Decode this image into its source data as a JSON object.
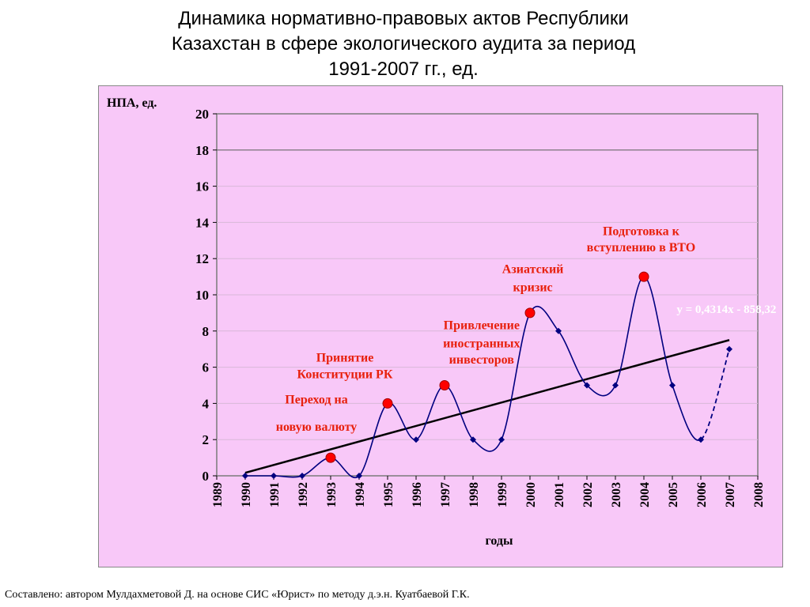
{
  "page": {
    "title_lines": [
      "Динамика нормативно-правовых актов Республики",
      "Казахстан в сфере экологического аудита за период",
      "1991-2007 гг., ед."
    ],
    "footer": "Составлено: автором Мулдахметовой Д. на основе СИС «Юрист» по методу д.э.н. Куатбаевой Г.К."
  },
  "chart_data": {
    "type": "line",
    "ylabel": "НПА, ед.",
    "xlabel": "годы",
    "xlim": [
      1989,
      2008
    ],
    "ylim": [
      0,
      20
    ],
    "x_ticks": [
      "1989",
      "1990",
      "1991",
      "1992",
      "1993",
      "1994",
      "1995",
      "1996",
      "1997",
      "1998",
      "1999",
      "2000",
      "2001",
      "2002",
      "2003",
      "2004",
      "2005",
      "2006",
      "2007",
      "2008"
    ],
    "y_ticks": [
      "0",
      "2",
      "4",
      "6",
      "8",
      "10",
      "12",
      "14",
      "16",
      "18",
      "20"
    ],
    "grid": "horizontal",
    "series": [
      {
        "color": "#000080",
        "x": [
          1990,
          1991,
          1992,
          1993,
          1994,
          1995,
          1996,
          1997,
          1998,
          1999,
          2000,
          2001,
          2002,
          2003,
          2004,
          2005,
          2006,
          2007
        ],
        "y": [
          0,
          0,
          0,
          1,
          0,
          4,
          2,
          5,
          2,
          2,
          9,
          8,
          5,
          5,
          11,
          5,
          2,
          7
        ],
        "dashed_last_segment": true
      }
    ],
    "trendline": {
      "color": "#000000",
      "equation": "y = 0,4314x - 858,32",
      "x_range": [
        1990,
        2007
      ],
      "slope": 0.4314,
      "intercept": -858.32
    },
    "events": [
      {
        "year": 1993,
        "value": 1,
        "label_lines": [
          "Переход на",
          "новую валюту"
        ]
      },
      {
        "year": 1995,
        "value": 4,
        "label_lines": [
          "Принятие",
          "Конституции РК"
        ]
      },
      {
        "year": 1997,
        "value": 5,
        "label_lines": [
          "Привлечение",
          "иностранных",
          "инвесторов"
        ]
      },
      {
        "year": 2000,
        "value": 9,
        "label_lines": [
          "Азиатский",
          "кризис"
        ]
      },
      {
        "year": 2004,
        "value": 11,
        "label_lines": [
          "Подготовка к",
          "вступлению в ВТО"
        ]
      }
    ],
    "colors": {
      "panel_bg": "#f8c8f8",
      "event_marker": "#ff0000",
      "event_text": "#e8200c",
      "equation_text": "#ffffff"
    }
  }
}
